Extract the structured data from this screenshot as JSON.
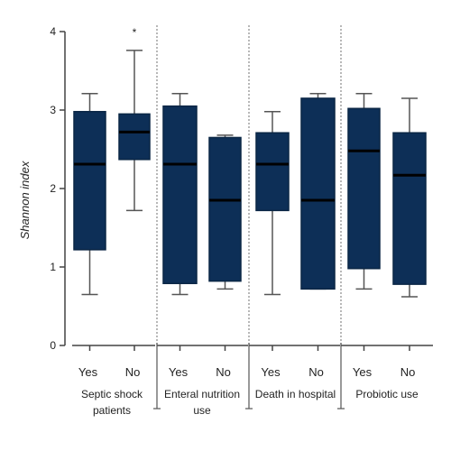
{
  "chart_data": {
    "type": "box",
    "title": "",
    "xlabel": "",
    "ylabel": "Shannon index",
    "ylim": [
      0,
      4
    ],
    "yticks": [
      "0",
      "1",
      "2",
      "3",
      "4"
    ],
    "groups": [
      {
        "label": "Septic shock\npatients",
        "categories": [
          "Yes",
          "No"
        ],
        "boxes": [
          {
            "min": 0.65,
            "q1": 1.22,
            "median": 2.31,
            "q3": 2.98,
            "max": 3.21
          },
          {
            "min": 1.72,
            "q1": 2.37,
            "median": 2.72,
            "q3": 2.95,
            "max": 3.76,
            "annotation": "*"
          }
        ]
      },
      {
        "label": "Enteral nutrition\nuse",
        "categories": [
          "Yes",
          "No"
        ],
        "boxes": [
          {
            "min": 0.65,
            "q1": 0.79,
            "median": 2.31,
            "q3": 3.05,
            "max": 3.21
          },
          {
            "min": 0.72,
            "q1": 0.82,
            "median": 1.85,
            "q3": 2.65,
            "max": 2.68
          }
        ]
      },
      {
        "label": "Death in hospital",
        "categories": [
          "Yes",
          "No"
        ],
        "boxes": [
          {
            "min": 0.65,
            "q1": 1.72,
            "median": 2.31,
            "q3": 2.71,
            "max": 2.98
          },
          {
            "min": 0.72,
            "q1": 0.72,
            "median": 1.85,
            "q3": 3.15,
            "max": 3.21
          }
        ]
      },
      {
        "label": "Probiotic use",
        "categories": [
          "Yes",
          "No"
        ],
        "boxes": [
          {
            "min": 0.72,
            "q1": 0.98,
            "median": 2.48,
            "q3": 3.02,
            "max": 3.21
          },
          {
            "min": 0.62,
            "q1": 0.78,
            "median": 2.17,
            "q3": 2.71,
            "max": 3.15
          }
        ]
      }
    ],
    "colors": {
      "box_fill": "#0d2f57",
      "box_stroke": "#0a2645",
      "median": "#000000",
      "whisker": "#555555",
      "separator": "#888888"
    },
    "grid": false,
    "legend": "none"
  }
}
